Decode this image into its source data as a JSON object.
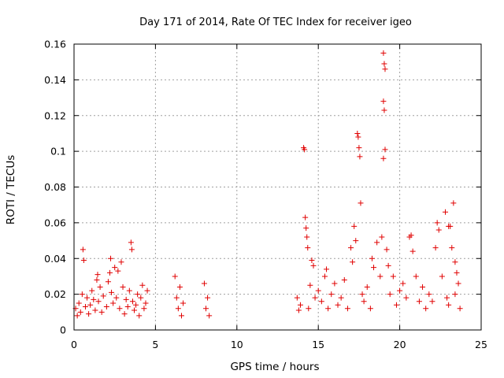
{
  "chart_data": {
    "type": "scatter",
    "title": "Day 171 of 2014, Rate Of TEC Index for receiver igeo",
    "xlabel": "GPS time / hours",
    "ylabel": "ROTI / TECUs",
    "xlim": [
      0,
      25
    ],
    "ylim": [
      0,
      0.16
    ],
    "grid": true,
    "marker": "+",
    "marker_color": "#e00000",
    "x_ticks": [
      0,
      5,
      10,
      15,
      20,
      25
    ],
    "x_tick_labels": [
      "0",
      "5",
      "10",
      "15",
      "20",
      "25"
    ],
    "y_ticks": [
      0,
      0.02,
      0.04,
      0.06,
      0.08,
      0.1,
      0.12,
      0.14,
      0.16
    ],
    "y_tick_labels": [
      "0",
      "0.02",
      "0.04",
      "0.06",
      "0.08",
      "0.1",
      "0.12",
      "0.14",
      "0.16"
    ],
    "series": [
      {
        "name": "ROTI",
        "points": [
          [
            0.1,
            0.012
          ],
          [
            0.2,
            0.008
          ],
          [
            0.3,
            0.015
          ],
          [
            0.4,
            0.01
          ],
          [
            0.5,
            0.02
          ],
          [
            0.55,
            0.045
          ],
          [
            0.6,
            0.039
          ],
          [
            0.7,
            0.013
          ],
          [
            0.8,
            0.018
          ],
          [
            0.9,
            0.009
          ],
          [
            1.0,
            0.014
          ],
          [
            1.1,
            0.022
          ],
          [
            1.2,
            0.017
          ],
          [
            1.3,
            0.011
          ],
          [
            1.4,
            0.028
          ],
          [
            1.45,
            0.031
          ],
          [
            1.5,
            0.016
          ],
          [
            1.6,
            0.024
          ],
          [
            1.7,
            0.01
          ],
          [
            1.8,
            0.019
          ],
          [
            2.0,
            0.013
          ],
          [
            2.1,
            0.027
          ],
          [
            2.2,
            0.032
          ],
          [
            2.25,
            0.04
          ],
          [
            2.3,
            0.021
          ],
          [
            2.4,
            0.015
          ],
          [
            2.5,
            0.035
          ],
          [
            2.6,
            0.018
          ],
          [
            2.7,
            0.033
          ],
          [
            2.8,
            0.012
          ],
          [
            2.9,
            0.038
          ],
          [
            3.0,
            0.024
          ],
          [
            3.1,
            0.009
          ],
          [
            3.2,
            0.017
          ],
          [
            3.3,
            0.013
          ],
          [
            3.4,
            0.022
          ],
          [
            3.5,
            0.049
          ],
          [
            3.55,
            0.045
          ],
          [
            3.6,
            0.016
          ],
          [
            3.7,
            0.011
          ],
          [
            3.8,
            0.014
          ],
          [
            3.9,
            0.02
          ],
          [
            4.0,
            0.008
          ],
          [
            4.1,
            0.018
          ],
          [
            4.2,
            0.025
          ],
          [
            4.3,
            0.012
          ],
          [
            4.4,
            0.015
          ],
          [
            4.5,
            0.022
          ],
          [
            6.2,
            0.03
          ],
          [
            6.3,
            0.018
          ],
          [
            6.4,
            0.012
          ],
          [
            6.5,
            0.024
          ],
          [
            6.6,
            0.008
          ],
          [
            6.7,
            0.015
          ],
          [
            8.0,
            0.026
          ],
          [
            8.1,
            0.012
          ],
          [
            8.2,
            0.018
          ],
          [
            8.3,
            0.008
          ],
          [
            13.7,
            0.018
          ],
          [
            13.8,
            0.011
          ],
          [
            13.9,
            0.014
          ],
          [
            14.1,
            0.102
          ],
          [
            14.15,
            0.101
          ],
          [
            14.2,
            0.063
          ],
          [
            14.25,
            0.057
          ],
          [
            14.3,
            0.052
          ],
          [
            14.35,
            0.046
          ],
          [
            14.4,
            0.012
          ],
          [
            14.5,
            0.025
          ],
          [
            14.6,
            0.039
          ],
          [
            14.7,
            0.036
          ],
          [
            14.8,
            0.018
          ],
          [
            15.0,
            0.022
          ],
          [
            15.2,
            0.016
          ],
          [
            15.4,
            0.03
          ],
          [
            15.5,
            0.034
          ],
          [
            15.6,
            0.012
          ],
          [
            15.8,
            0.02
          ],
          [
            16.0,
            0.026
          ],
          [
            16.2,
            0.014
          ],
          [
            16.4,
            0.018
          ],
          [
            16.6,
            0.028
          ],
          [
            16.8,
            0.012
          ],
          [
            17.0,
            0.046
          ],
          [
            17.1,
            0.038
          ],
          [
            17.2,
            0.058
          ],
          [
            17.3,
            0.05
          ],
          [
            17.4,
            0.11
          ],
          [
            17.45,
            0.108
          ],
          [
            17.5,
            0.102
          ],
          [
            17.55,
            0.097
          ],
          [
            17.6,
            0.071
          ],
          [
            17.7,
            0.02
          ],
          [
            17.8,
            0.016
          ],
          [
            18.0,
            0.024
          ],
          [
            18.2,
            0.012
          ],
          [
            18.3,
            0.04
          ],
          [
            18.4,
            0.035
          ],
          [
            18.6,
            0.049
          ],
          [
            18.8,
            0.03
          ],
          [
            18.9,
            0.052
          ],
          [
            19.0,
            0.155
          ],
          [
            19.05,
            0.149
          ],
          [
            19.1,
            0.146
          ],
          [
            19.0,
            0.128
          ],
          [
            19.05,
            0.123
          ],
          [
            19.1,
            0.101
          ],
          [
            19.0,
            0.096
          ],
          [
            19.2,
            0.045
          ],
          [
            19.3,
            0.036
          ],
          [
            19.4,
            0.02
          ],
          [
            19.6,
            0.03
          ],
          [
            19.8,
            0.014
          ],
          [
            20.0,
            0.022
          ],
          [
            20.2,
            0.026
          ],
          [
            20.4,
            0.018
          ],
          [
            20.6,
            0.052
          ],
          [
            20.7,
            0.053
          ],
          [
            20.8,
            0.044
          ],
          [
            21.0,
            0.03
          ],
          [
            21.2,
            0.016
          ],
          [
            21.4,
            0.024
          ],
          [
            21.6,
            0.012
          ],
          [
            21.8,
            0.02
          ],
          [
            22.0,
            0.016
          ],
          [
            22.2,
            0.046
          ],
          [
            22.3,
            0.06
          ],
          [
            22.4,
            0.056
          ],
          [
            22.6,
            0.03
          ],
          [
            22.8,
            0.066
          ],
          [
            23.0,
            0.058
          ],
          [
            23.1,
            0.058
          ],
          [
            23.2,
            0.046
          ],
          [
            23.3,
            0.071
          ],
          [
            23.4,
            0.038
          ],
          [
            23.5,
            0.032
          ],
          [
            23.6,
            0.026
          ],
          [
            23.7,
            0.012
          ],
          [
            23.4,
            0.02
          ],
          [
            23.0,
            0.014
          ],
          [
            22.9,
            0.018
          ]
        ]
      }
    ]
  }
}
